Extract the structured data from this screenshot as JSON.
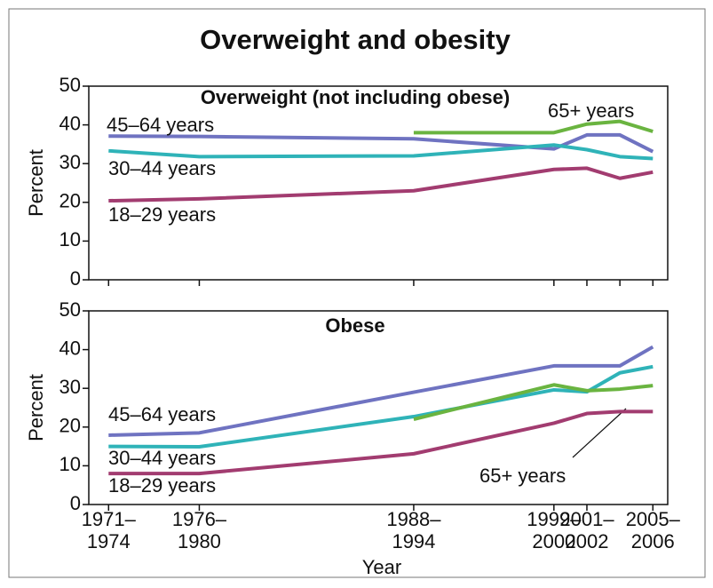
{
  "chart_data": [
    {
      "type": "line",
      "title": "Overweight and obesity",
      "subtitle": "Overweight (not including obese)",
      "ylabel": "Percent",
      "x": [
        1972.5,
        1978,
        1991,
        1999.5,
        2001.5,
        2003.5,
        2005.5
      ],
      "xlim": [
        1971.3,
        2006.4
      ],
      "ylim": [
        0,
        50
      ],
      "yticks": [
        0,
        10,
        20,
        30,
        40,
        50
      ],
      "series": [
        {
          "name": "45–64 years",
          "color": "#6f73c1",
          "values": [
            37.1,
            37.0,
            36.4,
            33.8,
            37.4,
            37.4,
            33.1
          ]
        },
        {
          "name": "30–44 years",
          "color": "#2fb3b8",
          "values": [
            33.3,
            31.8,
            32.0,
            34.8,
            33.6,
            31.8,
            31.3
          ]
        },
        {
          "name": "18–29 years",
          "color": "#a23c70",
          "values": [
            20.4,
            20.9,
            23.0,
            28.5,
            28.8,
            26.2,
            27.8
          ]
        },
        {
          "name": "65+ years",
          "color": "#6ab440",
          "values": [
            null,
            null,
            38.0,
            38.0,
            40.2,
            40.9,
            38.3
          ]
        }
      ]
    },
    {
      "type": "line",
      "subtitle": "Obese",
      "ylabel": "Percent",
      "xlabel": "Year",
      "x": [
        1972.5,
        1978,
        1991,
        1999.5,
        2001.5,
        2003.5,
        2005.5
      ],
      "xlim": [
        1971.3,
        2006.4
      ],
      "ylim": [
        0,
        50
      ],
      "yticks": [
        0,
        10,
        20,
        30,
        40,
        50
      ],
      "xticks": [
        {
          "value": 1972.5,
          "label": "1971–1974"
        },
        {
          "value": 1978,
          "label": "1976–1980"
        },
        {
          "value": 1991,
          "label": "1988–1994"
        },
        {
          "value": 1999.5,
          "label": "1999–2000"
        },
        {
          "value": 2001.5,
          "label": "2001–2002"
        },
        {
          "value": 2005.5,
          "label": "2005–2006"
        }
      ],
      "series": [
        {
          "name": "45–64 years",
          "color": "#6f73c1",
          "values": [
            17.9,
            18.5,
            29.0,
            35.8,
            35.8,
            35.8,
            40.7
          ]
        },
        {
          "name": "30–44 years",
          "color": "#2fb3b8",
          "values": [
            15.0,
            14.9,
            22.7,
            29.6,
            29.1,
            34.0,
            35.6
          ]
        },
        {
          "name": "18–29 years",
          "color": "#a23c70",
          "values": [
            8.0,
            8.0,
            13.1,
            21.0,
            23.5,
            24.0,
            24.0
          ]
        },
        {
          "name": "65+ years",
          "color": "#6ab440",
          "values": [
            null,
            null,
            22.0,
            30.9,
            29.4,
            29.8,
            30.7
          ]
        }
      ]
    }
  ]
}
